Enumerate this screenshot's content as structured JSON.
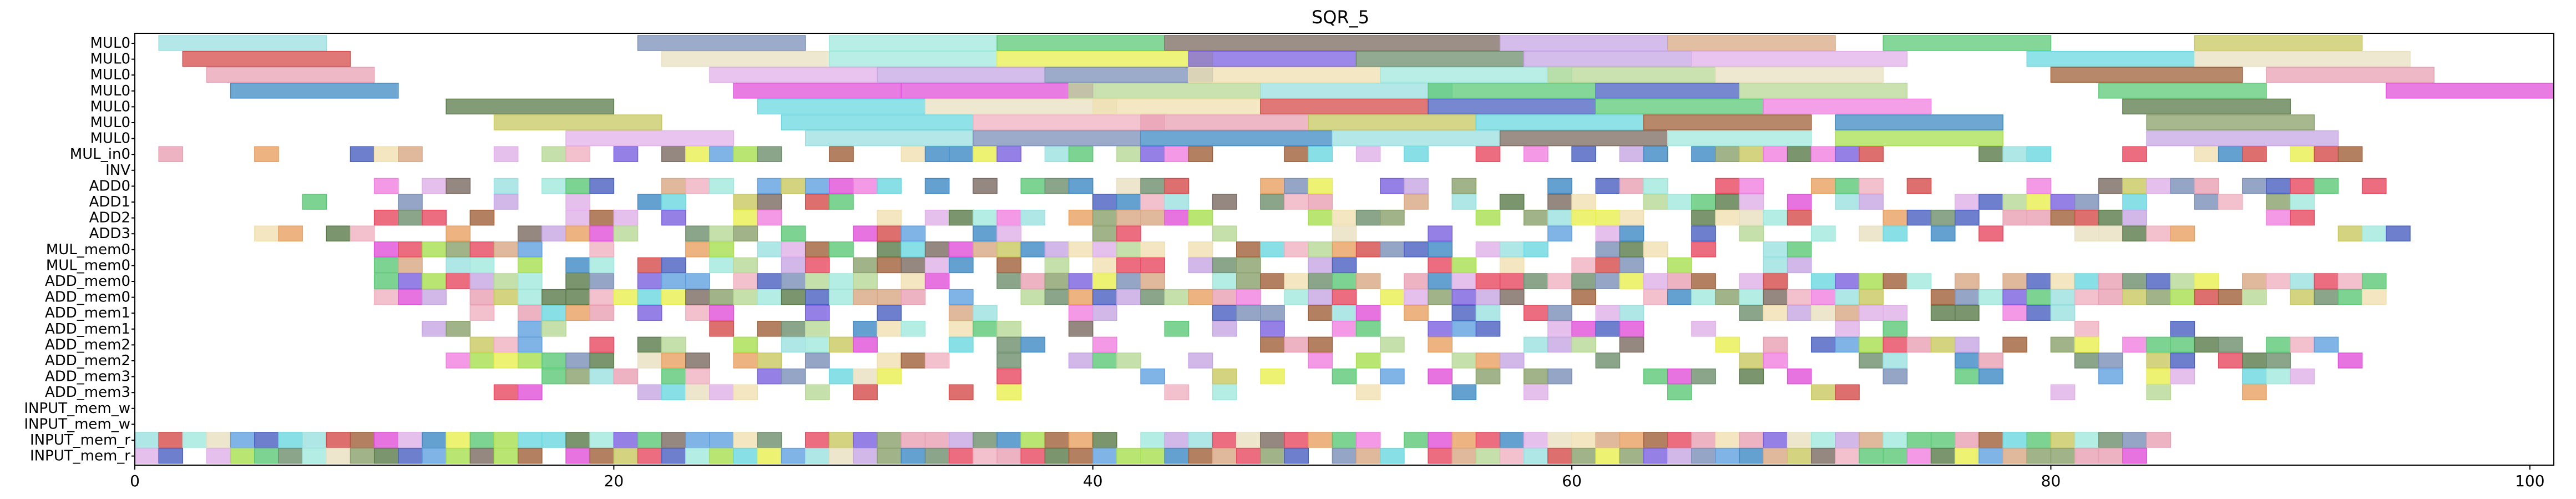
{
  "chart_data": {
    "type": "gantt",
    "title": "SQR_5",
    "xlabel": "",
    "ylabel": "",
    "xlim": [
      0,
      101
    ],
    "xticks": [
      "0",
      "20",
      "40",
      "60",
      "80",
      "100"
    ],
    "xtick_values": [
      0,
      20,
      40,
      60,
      80,
      100
    ],
    "rows": [
      "MUL0",
      "MUL0",
      "MUL0",
      "MUL0",
      "MUL0",
      "MUL0",
      "MUL0",
      "MUL_in0",
      "INV",
      "ADD0",
      "ADD1",
      "ADD2",
      "ADD3",
      "MUL_mem0",
      "MUL_mem0",
      "ADD_mem0",
      "ADD_mem0",
      "ADD_mem1",
      "ADD_mem1",
      "ADD_mem2",
      "ADD_mem2",
      "ADD_mem3",
      "ADD_mem3",
      "INPUT_mem_w",
      "INPUT_mem_w",
      "INPUT_mem_r",
      "INPUT_mem_r"
    ],
    "palette": [
      "#9be0e0",
      "#7b8fb8",
      "#a0e8dc",
      "#5cc877",
      "#7a6a60",
      "#c6a6e4",
      "#d8a884",
      "#c8c860",
      "#b8d896",
      "#d64b4b",
      "#e8e0c0",
      "#e8ef50",
      "#7a60e0",
      "#6e8e6e",
      "#e0b0e8",
      "#6ad8e0",
      "#a0603a",
      "#f0e0b0",
      "#e8a0b4",
      "#e84860",
      "#3f8ac4",
      "#e050d8",
      "#a8e050",
      "#4a60c0",
      "#f080e0",
      "#5a7a4a",
      "#e8a060",
      "#f0b0c0",
      "#8aa06a",
      "#60a0e0"
    ],
    "mul_bars": [
      [
        [
          1,
          8,
          0
        ],
        [
          21,
          28,
          1
        ],
        [
          29,
          36,
          2
        ],
        [
          36,
          43,
          3
        ],
        [
          43,
          57,
          4
        ],
        [
          57,
          64,
          5
        ],
        [
          64,
          71,
          6
        ],
        [
          73,
          80,
          3
        ],
        [
          86,
          93,
          7
        ]
      ],
      [
        [
          2,
          9,
          9
        ],
        [
          22,
          29,
          10
        ],
        [
          29,
          36,
          2
        ],
        [
          36,
          45,
          11
        ],
        [
          44,
          51,
          12
        ],
        [
          51,
          58,
          13
        ],
        [
          58,
          65,
          5
        ],
        [
          65,
          74,
          14
        ],
        [
          79,
          86,
          15
        ],
        [
          86,
          95,
          10
        ]
      ],
      [
        [
          3,
          10,
          18
        ],
        [
          24,
          31,
          14
        ],
        [
          31,
          38,
          5
        ],
        [
          38,
          45,
          1
        ],
        [
          44,
          52,
          17
        ],
        [
          52,
          60,
          2
        ],
        [
          59,
          66,
          8
        ],
        [
          66,
          73,
          10
        ],
        [
          80,
          88,
          16
        ],
        [
          89,
          96,
          18
        ]
      ],
      [
        [
          4,
          11,
          20
        ],
        [
          25,
          32,
          21
        ],
        [
          32,
          40,
          21
        ],
        [
          39,
          47,
          8
        ],
        [
          47,
          55,
          0
        ],
        [
          54,
          61,
          3
        ],
        [
          61,
          67,
          23
        ],
        [
          67,
          74,
          8
        ],
        [
          82,
          89,
          3
        ],
        [
          94,
          101,
          21
        ]
      ],
      [
        [
          13,
          20,
          25
        ],
        [
          26,
          33,
          15
        ],
        [
          33,
          41,
          10
        ],
        [
          40,
          47,
          17
        ],
        [
          47,
          54,
          9
        ],
        [
          54,
          61,
          23
        ],
        [
          61,
          68,
          3
        ],
        [
          68,
          75,
          24
        ],
        [
          83,
          90,
          25
        ]
      ],
      [
        [
          15,
          22,
          7
        ],
        [
          27,
          35,
          15
        ],
        [
          35,
          43,
          27
        ],
        [
          42,
          49,
          18
        ],
        [
          49,
          56,
          7
        ],
        [
          56,
          63,
          15
        ],
        [
          63,
          70,
          16
        ],
        [
          71,
          78,
          20
        ],
        [
          84,
          91,
          28
        ]
      ],
      [
        [
          18,
          25,
          14
        ],
        [
          28,
          35,
          0
        ],
        [
          35,
          42,
          1
        ],
        [
          42,
          50,
          20
        ],
        [
          50,
          57,
          0
        ],
        [
          57,
          64,
          4
        ],
        [
          64,
          70,
          2
        ],
        [
          71,
          78,
          22
        ],
        [
          84,
          92,
          5
        ]
      ]
    ]
  }
}
